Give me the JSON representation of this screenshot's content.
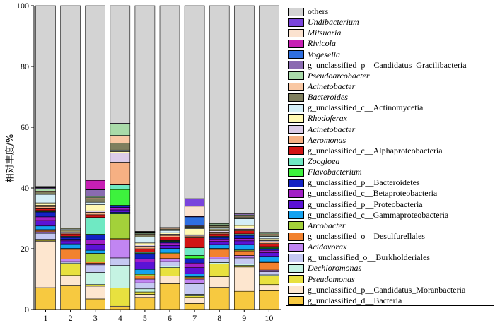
{
  "chart_data": {
    "type": "bar",
    "stacked": true,
    "ylabel": "相对丰度/%",
    "ylim": [
      0,
      100
    ],
    "yticks": [
      0,
      20,
      40,
      60,
      80,
      100
    ],
    "grid": false,
    "legend_position": "right",
    "categories": [
      "1",
      "2",
      "3",
      "4",
      "5",
      "6",
      "7",
      "8",
      "9",
      "10"
    ],
    "series": [
      {
        "name": "g_unclassified_d__Bacteria",
        "color": "#f7c940",
        "italic": false,
        "values": [
          7.2,
          8.0,
          3.5,
          0.8,
          4.0,
          8.5,
          2.0,
          7.3,
          6.0,
          6.2
        ]
      },
      {
        "name": "g_unclassified_p__Candidatus_Moranbacteria",
        "color": "#fde6cf",
        "italic": false,
        "values": [
          15.3,
          3.2,
          4.2,
          0.3,
          1.0,
          2.5,
          2.0,
          3.5,
          8.0,
          2.0
        ]
      },
      {
        "name": "Pseudomonas",
        "color": "#e8e13f",
        "italic": true,
        "values": [
          0.3,
          3.8,
          0.5,
          6.0,
          0.8,
          2.8,
          0.5,
          4.2,
          0.5,
          2.8
        ]
      },
      {
        "name": "Dechloromonas",
        "color": "#c5f3e3",
        "italic": true,
        "values": [
          0.3,
          0.3,
          4.0,
          7.4,
          1.0,
          0.5,
          0.5,
          0.5,
          0.5,
          0.4
        ]
      },
      {
        "name": "g_ unclassified_o__Burkholderiales",
        "color": "#c5c9f2",
        "italic": false,
        "values": [
          2.0,
          0.5,
          2.5,
          2.5,
          2.0,
          1.5,
          3.5,
          1.2,
          2.0,
          1.0
        ]
      },
      {
        "name": "Acidovorax",
        "color": "#c185f2",
        "italic": true,
        "values": [
          0.5,
          0.8,
          0.5,
          6.0,
          1.2,
          1.0,
          1.5,
          0.6,
          0.8,
          0.6
        ]
      },
      {
        "name": "g_unclassified_o__Desulfurellales",
        "color": "#f2822f",
        "italic": false,
        "values": [
          0.4,
          3.2,
          0.5,
          0.3,
          1.0,
          1.5,
          0.5,
          2.5,
          1.5,
          2.5
        ]
      },
      {
        "name": "Arcobacter",
        "color": "#a3d13a",
        "italic": true,
        "values": [
          0.3,
          0.3,
          2.8,
          8.2,
          0.6,
          0.3,
          0.3,
          0.3,
          0.3,
          0.3
        ]
      },
      {
        "name": "g_unclassified_c__Gammaproteobacteria",
        "color": "#14a2f0",
        "italic": false,
        "values": [
          1.2,
          1.5,
          1.0,
          0.5,
          1.6,
          1.5,
          1.0,
          1.3,
          1.8,
          1.7
        ]
      },
      {
        "name": "g_unclassified_p__Proteobacteria",
        "color": "#5b12d6",
        "italic": false,
        "values": [
          1.8,
          1.0,
          2.0,
          0.8,
          2.5,
          1.0,
          2.0,
          1.0,
          1.2,
          1.2
        ]
      },
      {
        "name": "g_unclassified_c__Betaproteobacteria",
        "color": "#a21fc6",
        "italic": false,
        "values": [
          1.2,
          0.5,
          1.5,
          0.8,
          1.0,
          0.8,
          1.5,
          0.8,
          0.8,
          0.8
        ]
      },
      {
        "name": "g_unclassified_p__Bacteroidetes",
        "color": "#1322c4",
        "italic": false,
        "values": [
          1.6,
          0.6,
          1.5,
          0.7,
          1.5,
          0.5,
          1.5,
          0.5,
          1.0,
          0.6
        ]
      },
      {
        "name": "Flavobacterium",
        "color": "#3df23d",
        "italic": true,
        "values": [
          0.2,
          0.2,
          0.3,
          5.2,
          0.3,
          0.2,
          1.0,
          0.2,
          0.2,
          0.3
        ]
      },
      {
        "name": "Zoogloea",
        "color": "#6fe9c3",
        "italic": true,
        "values": [
          0.3,
          0.2,
          5.5,
          1.5,
          0.3,
          0.2,
          2.5,
          0.2,
          0.3,
          0.3
        ]
      },
      {
        "name": "g_unclassified_c__Alphaproteobacteria",
        "color": "#d11414",
        "italic": false,
        "values": [
          0.8,
          0.8,
          0.9,
          0.2,
          1.2,
          1.0,
          3.3,
          0.8,
          1.0,
          1.0
        ]
      },
      {
        "name": "Aeromonas",
        "color": "#f6b083",
        "italic": true,
        "values": [
          0.5,
          0.4,
          0.8,
          7.3,
          0.8,
          0.6,
          0.6,
          0.6,
          0.5,
          0.6
        ]
      },
      {
        "name": "Acinetobacter",
        "color": "#dccce9",
        "italic": true,
        "values": [
          0.4,
          0.3,
          0.5,
          3.0,
          0.5,
          0.4,
          0.4,
          0.4,
          0.5,
          0.4
        ]
      },
      {
        "name": "Rhodoferax",
        "color": "#fff9b3",
        "italic": true,
        "values": [
          0.8,
          0.4,
          2.0,
          0.5,
          0.6,
          0.5,
          2.0,
          0.6,
          0.8,
          0.6
        ]
      },
      {
        "name": "g_unclassified_c__Actinomycetia",
        "color": "#d4eef6",
        "italic": false,
        "values": [
          2.8,
          0.5,
          0.8,
          0.5,
          2.0,
          0.7,
          0.3,
          0.5,
          2.2,
          0.8
        ]
      },
      {
        "name": "Bacteroides",
        "color": "#7f7f5e",
        "italic": true,
        "values": [
          0.8,
          0.4,
          1.2,
          2.3,
          0.6,
          0.5,
          0.2,
          0.6,
          0.6,
          0.5
        ]
      },
      {
        "name": "Acinetobacter",
        "color": "#f9c8a4",
        "italic": true,
        "values": [
          0.3,
          0,
          0.3,
          2.5,
          0.3,
          0.3,
          0.2,
          0.3,
          0.3,
          0.3
        ]
      },
      {
        "name": "Pseudoarcobacter",
        "color": "#a9dba9",
        "italic": true,
        "values": [
          0.8,
          0,
          0.4,
          3.8,
          0.3,
          0.2,
          0.2,
          0.4,
          0.3,
          0.3
        ]
      },
      {
        "name": "g_unclassified_p__Candidatus_Gracilibacteria",
        "color": "#8a6bb1",
        "italic": false,
        "values": [
          0.3,
          0,
          2.2,
          0.2,
          0.2,
          0,
          0.3,
          0,
          0.4,
          0.2
        ]
      },
      {
        "name": "Vogesella",
        "color": "#2f6fe0",
        "italic": true,
        "values": [
          0.1,
          0,
          0.1,
          0,
          0.1,
          0,
          2.7,
          0,
          0,
          0
        ]
      },
      {
        "name": "Rivicola",
        "color": "#c71fb4",
        "italic": true,
        "values": [
          0.1,
          0,
          3.0,
          0,
          0.1,
          0,
          0.2,
          0,
          0,
          0
        ]
      },
      {
        "name": "Mitsuaria",
        "color": "#fbe2cf",
        "italic": true,
        "values": [
          0.1,
          0,
          0,
          0,
          0.1,
          0,
          3.3,
          0,
          0,
          0
        ]
      },
      {
        "name": "Undibacterium",
        "color": "#7a44dc",
        "italic": true,
        "values": [
          0.1,
          0,
          0,
          0,
          0.1,
          0,
          2.5,
          0,
          0,
          0
        ]
      },
      {
        "name": "others",
        "color": "#d3d3d3",
        "italic": false,
        "values": [
          59.5,
          73.1,
          57.5,
          38.7,
          74.3,
          73.0,
          63.5,
          71.7,
          68.5,
          74.6
        ]
      }
    ]
  }
}
